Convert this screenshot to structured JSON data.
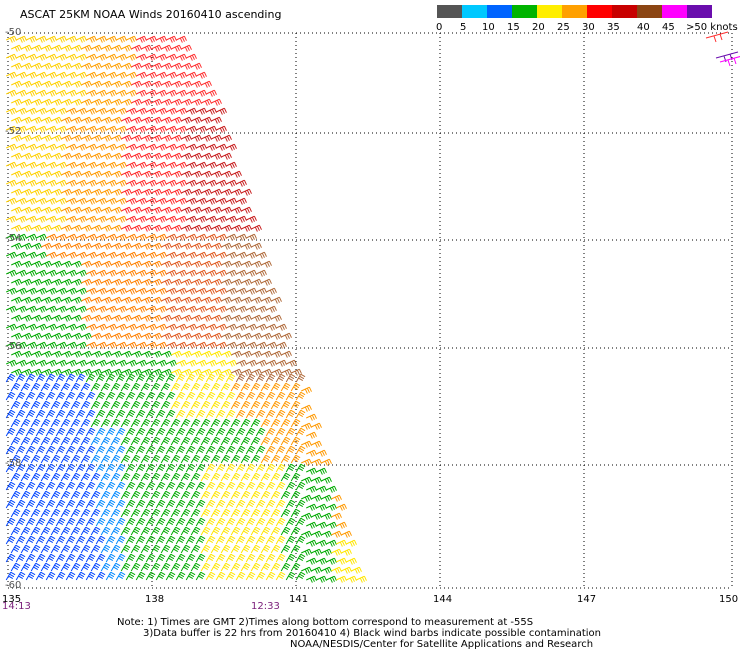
{
  "title": "ASCAT 25KM NOAA Winds 20160410 ascending",
  "legend": {
    "colors": [
      "#555555",
      "#00c8ff",
      "#0064ff",
      "#00b400",
      "#ffee00",
      "#ffa000",
      "#ff0000",
      "#c80000",
      "#8b4513",
      "#ff00ff",
      "#6a0dad"
    ],
    "labels": [
      "0",
      "5",
      "10",
      "15",
      "20",
      "25",
      "30",
      "35",
      "40",
      "45",
      ">50 knots"
    ]
  },
  "latitudes": [
    "-50",
    "-52",
    "-54",
    "-56",
    "-58",
    "-60"
  ],
  "longitudes": [
    "135",
    "138",
    "141",
    "144",
    "147",
    "150"
  ],
  "times": [
    "14:13",
    "12:33"
  ],
  "notes": {
    "line1": "Note: 1) Times are GMT 2)Times along bottom correspond to measurement at -55S",
    "line2": "3)Data buffer is 22 hrs from 20160410 4) Black wind barbs indicate possible contamination",
    "line3": "NOAA/NESDIS/Center for Satellite Applications and Research"
  }
}
